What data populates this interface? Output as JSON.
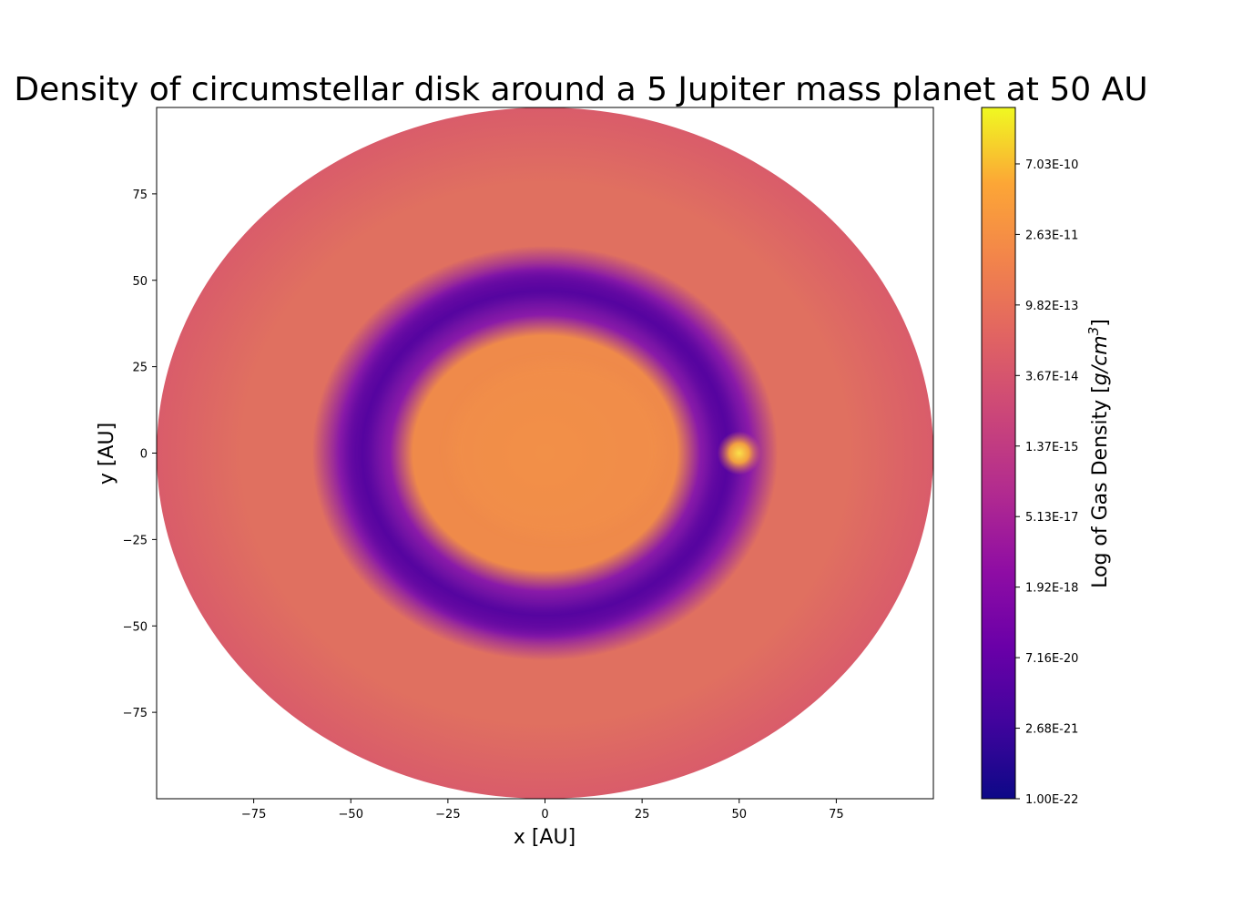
{
  "chart_data": {
    "type": "heatmap",
    "title": "Density of circumstellar disk around a 5 Jupiter mass planet at 50 AU",
    "xlabel": "x [AU]",
    "ylabel": "y [AU]",
    "xlim": [
      -100,
      100
    ],
    "ylim": [
      -100,
      100
    ],
    "x_ticks": [
      -75,
      -50,
      -25,
      0,
      25,
      50,
      75
    ],
    "y_ticks": [
      75,
      50,
      25,
      0,
      -25,
      -50,
      -75
    ],
    "x_tick_labels": [
      "−75",
      "−50",
      "−25",
      "0",
      "25",
      "50",
      "75"
    ],
    "y_tick_labels": [
      "75",
      "50",
      "25",
      "0",
      "−25",
      "−50",
      "−75"
    ],
    "grid": false,
    "colormap": "plasma",
    "colorbar": {
      "label_prefix": "Log of Gas Density [",
      "label_unit": "g/cm",
      "label_exp": "3",
      "label_suffix": "]",
      "tick_labels": [
        "1.00E-22",
        "2.68E-21",
        "7.16E-20",
        "1.92E-18",
        "5.13E-17",
        "1.37E-15",
        "3.67E-14",
        "9.82E-13",
        "2.63E-11",
        "7.03E-10"
      ],
      "tick_positions": [
        0,
        1,
        2,
        3,
        4,
        5,
        6,
        7,
        8,
        9
      ],
      "range": [
        0,
        9.8
      ]
    },
    "disk": {
      "outer_radius_au": 100,
      "planet_position_au": [
        50,
        0
      ],
      "gap_center_radius_au": 47,
      "colors": {
        "outer_disk": "#d95c6a",
        "middle_disk": "#e07060",
        "inner_disk": "#ef8a4a",
        "core": "#f28f48",
        "gap": "#5608a0",
        "gap_edge": "#8a1aa8",
        "planet": "#f7c14a"
      }
    }
  }
}
